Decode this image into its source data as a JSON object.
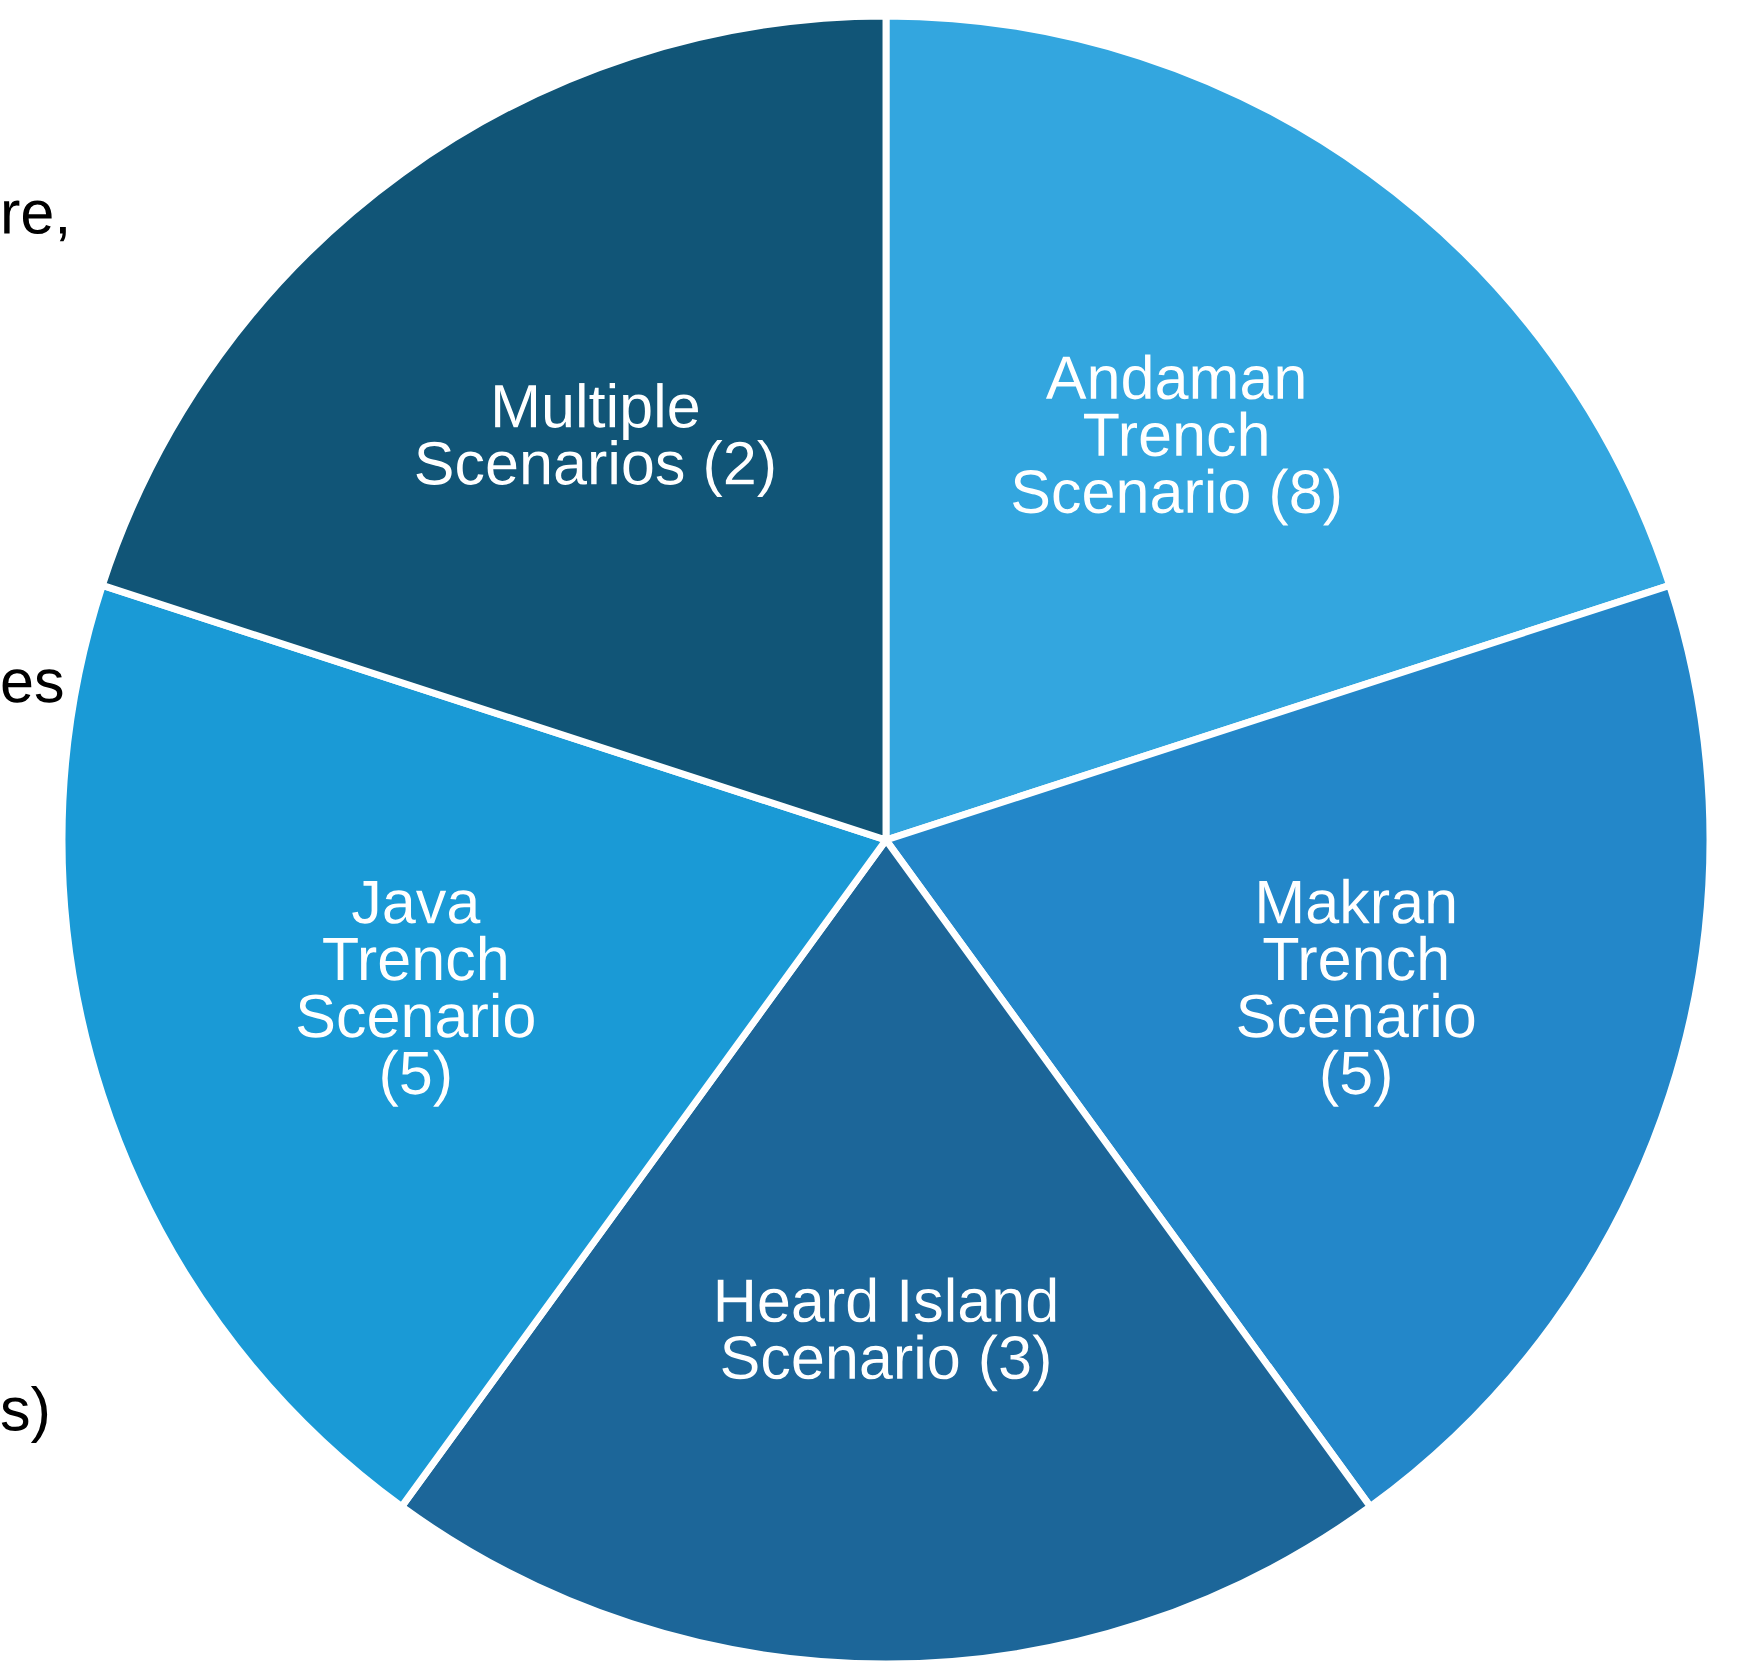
{
  "chart_data": {
    "type": "pie",
    "categories": [
      "Andaman\nTrench\nScenario (8)",
      "Makran\nTrench\nScenario\n(5)",
      "Heard Island\nScenario (3)",
      "Java\nTrench\nScenario\n(5)",
      "Multiple\nScenarios (2)"
    ],
    "values": [
      20,
      20,
      20,
      20,
      20
    ],
    "colors": [
      "#33a6df",
      "#2387c9",
      "#1c6699",
      "#1a9ad6",
      "#115577"
    ],
    "annotations": [
      "re,",
      "es",
      "s)"
    ]
  }
}
